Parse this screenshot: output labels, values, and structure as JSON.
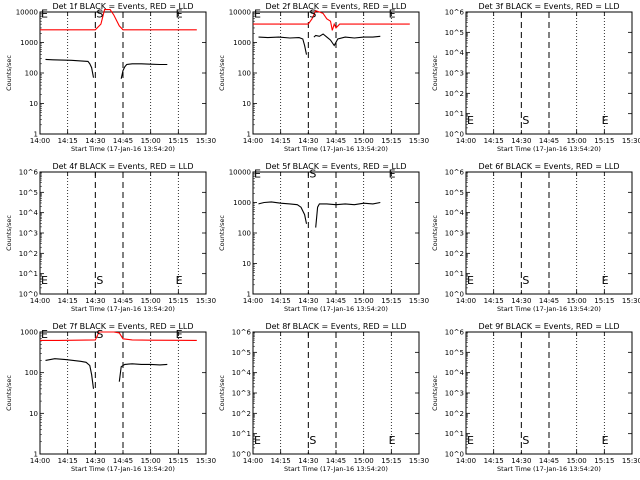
{
  "figure": {
    "ylabel": "Counts/sec",
    "xlabel_prefix": "Start Time",
    "xlabel_time": "(17-Jan-16 13:54:20)",
    "colors": {
      "events": "#000000",
      "lld": "#ff0000",
      "frame": "#000000"
    }
  },
  "chart_data": [
    {
      "id": "det1",
      "type": "line",
      "title": "Det 1f BLACK = Events, RED = LLD",
      "yscale": "log",
      "ylim": [
        1,
        10000
      ],
      "yticks": [
        "1",
        "10",
        "100",
        "1000",
        "10000"
      ],
      "xticks": [
        "14:00",
        "14:15",
        "14:30",
        "14:45",
        "15:00",
        "15:15",
        "15:30"
      ],
      "dashed_lines": [
        "14:30",
        "14:45"
      ],
      "dotted_lines": [
        "14:15",
        "15:00",
        "15:15"
      ],
      "markers": [
        {
          "text": "E",
          "time": "14:00",
          "value": 9000
        },
        {
          "text": "S",
          "time": "14:30",
          "value": 9000
        },
        {
          "text": "E",
          "time": "15:13",
          "value": 9000
        }
      ],
      "series": [
        {
          "name": "Events",
          "color": "#000000",
          "segments": [
            {
              "x": [
                "14:03",
                "14:07",
                "14:12",
                "14:17",
                "14:22",
                "14:26",
                "14:27",
                "14:28",
                "14:29"
              ],
              "y": [
                280,
                270,
                265,
                260,
                250,
                240,
                200,
                150,
                70
              ]
            },
            {
              "x": [
                "14:44",
                "14:45",
                "14:46",
                "14:47",
                "14:50",
                "14:55",
                "15:00",
                "15:05",
                "15:09"
              ],
              "y": [
                65,
                120,
                160,
                190,
                200,
                200,
                195,
                190,
                190
              ]
            }
          ]
        },
        {
          "name": "LLD",
          "color": "#ff0000",
          "segments": [
            {
              "x": [
                "14:00",
                "14:10",
                "14:20",
                "14:30",
                "14:33",
                "14:35",
                "14:38",
                "14:40",
                "14:43",
                "14:45",
                "14:50",
                "15:00",
                "15:15",
                "15:25"
              ],
              "y": [
                2600,
                2600,
                2600,
                2600,
                4000,
                12000,
                12000,
                8000,
                3500,
                2600,
                2600,
                2600,
                2600,
                2600
              ]
            }
          ]
        }
      ]
    },
    {
      "id": "det2",
      "type": "line",
      "title": "Det 2f BLACK = Events, RED = LLD",
      "yscale": "log",
      "ylim": [
        1,
        10000
      ],
      "yticks": [
        "1",
        "10",
        "100",
        "1000",
        "10000"
      ],
      "xticks": [
        "14:00",
        "14:15",
        "14:30",
        "14:45",
        "15:00",
        "15:15",
        "15:30"
      ],
      "dashed_lines": [
        "14:30",
        "14:45"
      ],
      "dotted_lines": [
        "14:15",
        "15:00",
        "15:15"
      ],
      "markers": [
        {
          "text": "E",
          "time": "14:00",
          "value": 9000
        },
        {
          "text": "S",
          "time": "14:30",
          "value": 9000
        },
        {
          "text": "E",
          "time": "15:13",
          "value": 9000
        }
      ],
      "series": [
        {
          "name": "Events",
          "color": "#000000",
          "segments": [
            {
              "x": [
                "14:03",
                "14:08",
                "14:14",
                "14:20",
                "14:25",
                "14:27",
                "14:28",
                "14:29"
              ],
              "y": [
                1500,
                1450,
                1500,
                1400,
                1450,
                1300,
                800,
                400
              ]
            },
            {
              "x": [
                "14:33",
                "14:34",
                "14:36",
                "14:38",
                "14:40",
                "14:42",
                "14:44",
                "14:46",
                "14:50",
                "14:55",
                "15:00",
                "15:05",
                "15:09"
              ],
              "y": [
                1500,
                1700,
                1600,
                1900,
                1500,
                1200,
                800,
                1300,
                1500,
                1400,
                1500,
                1500,
                1600
              ]
            }
          ]
        },
        {
          "name": "LLD",
          "color": "#ff0000",
          "segments": [
            {
              "x": [
                "14:00",
                "14:10",
                "14:20",
                "14:30",
                "14:32",
                "14:34",
                "14:36",
                "14:38",
                "14:40",
                "14:42",
                "14:43",
                "14:44",
                "14:45",
                "14:47",
                "14:50",
                "15:00",
                "15:15",
                "15:25"
              ],
              "y": [
                4000,
                4000,
                4000,
                4000,
                6000,
                11000,
                10000,
                9000,
                6000,
                5000,
                2500,
                4000,
                3000,
                4000,
                4000,
                4000,
                4000,
                4000
              ]
            }
          ]
        }
      ]
    },
    {
      "id": "det3",
      "type": "line",
      "title": "Det 3f BLACK = Events, RED = LLD",
      "yscale": "log",
      "ylim": [
        1,
        1000000
      ],
      "yticks": [
        "10^0",
        "10^1",
        "10^2",
        "10^3",
        "10^4",
        "10^5",
        "10^6"
      ],
      "xticks": [
        "14:00",
        "14:15",
        "14:30",
        "14:45",
        "15:00",
        "15:15",
        "15:30"
      ],
      "dashed_lines": [
        "14:30",
        "14:45"
      ],
      "dotted_lines": [
        "14:15",
        "15:00",
        "15:15"
      ],
      "markers": [
        {
          "text": "E",
          "time": "14:00",
          "value": 5
        },
        {
          "text": "S",
          "time": "14:30",
          "value": 5
        },
        {
          "text": "E",
          "time": "15:13",
          "value": 5
        }
      ],
      "series": []
    },
    {
      "id": "det4",
      "type": "line",
      "title": "Det 4f BLACK = Events, RED = LLD",
      "yscale": "log",
      "ylim": [
        1,
        1000000
      ],
      "yticks": [
        "10^0",
        "10^1",
        "10^2",
        "10^3",
        "10^4",
        "10^5",
        "10^6"
      ],
      "xticks": [
        "14:00",
        "14:15",
        "14:30",
        "14:45",
        "15:00",
        "15:15",
        "15:30"
      ],
      "dashed_lines": [
        "14:30",
        "14:45"
      ],
      "dotted_lines": [
        "14:15",
        "15:00",
        "15:15"
      ],
      "markers": [
        {
          "text": "E",
          "time": "14:00",
          "value": 5
        },
        {
          "text": "S",
          "time": "14:30",
          "value": 5
        },
        {
          "text": "E",
          "time": "15:13",
          "value": 5
        }
      ],
      "series": []
    },
    {
      "id": "det5",
      "type": "line",
      "title": "Det 5f BLACK = Events, RED = LLD",
      "yscale": "log",
      "ylim": [
        1,
        10000
      ],
      "yticks": [
        "1",
        "10",
        "100",
        "1000",
        "10000"
      ],
      "xticks": [
        "14:00",
        "14:15",
        "14:30",
        "14:45",
        "15:00",
        "15:15",
        "15:30"
      ],
      "dashed_lines": [
        "14:30",
        "14:45"
      ],
      "dotted_lines": [
        "14:15",
        "15:00",
        "15:15"
      ],
      "markers": [
        {
          "text": "E",
          "time": "14:00",
          "value": 9000
        },
        {
          "text": "S",
          "time": "14:30",
          "value": 9000
        },
        {
          "text": "E",
          "time": "15:13",
          "value": 9000
        }
      ],
      "series": [
        {
          "name": "Events",
          "color": "#000000",
          "segments": [
            {
              "x": [
                "14:03",
                "14:06",
                "14:10",
                "14:15",
                "14:20",
                "14:24",
                "14:26",
                "14:28",
                "14:29"
              ],
              "y": [
                900,
                1000,
                1050,
                950,
                900,
                850,
                700,
                400,
                200
              ]
            },
            {
              "x": [
                "14:34",
                "14:35",
                "14:36",
                "14:40",
                "14:45",
                "14:50",
                "14:55",
                "15:00",
                "15:05",
                "15:09"
              ],
              "y": [
                150,
                700,
                900,
                900,
                850,
                900,
                850,
                950,
                900,
                1000
              ]
            }
          ]
        }
      ]
    },
    {
      "id": "det6",
      "type": "line",
      "title": "Det 6f BLACK = Events, RED = LLD",
      "yscale": "log",
      "ylim": [
        1,
        1000000
      ],
      "yticks": [
        "10^0",
        "10^1",
        "10^2",
        "10^3",
        "10^4",
        "10^5",
        "10^6"
      ],
      "xticks": [
        "14:00",
        "14:15",
        "14:30",
        "14:45",
        "15:00",
        "15:15",
        "15:30"
      ],
      "dashed_lines": [
        "14:30",
        "14:45"
      ],
      "dotted_lines": [
        "14:15",
        "15:00",
        "15:15"
      ],
      "markers": [
        {
          "text": "E",
          "time": "14:00",
          "value": 5
        },
        {
          "text": "S",
          "time": "14:30",
          "value": 5
        },
        {
          "text": "E",
          "time": "15:13",
          "value": 5
        }
      ],
      "series": []
    },
    {
      "id": "det7",
      "type": "line",
      "title": "Det 7f BLACK = Events, RED = LLD",
      "yscale": "log",
      "ylim": [
        1,
        1000
      ],
      "yticks": [
        "1",
        "10",
        "100",
        "1000"
      ],
      "xticks": [
        "14:00",
        "14:15",
        "14:30",
        "14:45",
        "15:00",
        "15:15",
        "15:30"
      ],
      "dashed_lines": [
        "14:30",
        "14:45"
      ],
      "dotted_lines": [
        "14:15",
        "15:00",
        "15:15"
      ],
      "markers": [
        {
          "text": "E",
          "time": "14:00",
          "value": 900
        },
        {
          "text": "S",
          "time": "14:30",
          "value": 900
        },
        {
          "text": "E",
          "time": "15:13",
          "value": 900
        }
      ],
      "series": [
        {
          "name": "Events",
          "color": "#000000",
          "segments": [
            {
              "x": [
                "14:03",
                "14:08",
                "14:14",
                "14:18",
                "14:22",
                "14:25",
                "14:27",
                "14:28",
                "14:29"
              ],
              "y": [
                200,
                220,
                210,
                200,
                190,
                180,
                150,
                90,
                40
              ]
            },
            {
              "x": [
                "14:43",
                "14:44",
                "14:46",
                "14:50",
                "14:55",
                "15:00",
                "15:05",
                "15:09"
              ],
              "y": [
                60,
                140,
                160,
                165,
                160,
                160,
                155,
                160
              ]
            }
          ]
        },
        {
          "name": "LLD",
          "color": "#ff0000",
          "segments": [
            {
              "x": [
                "14:00",
                "14:10",
                "14:20",
                "14:30",
                "14:32",
                "14:35",
                "14:40",
                "14:43",
                "14:45",
                "14:50",
                "15:00",
                "15:15",
                "15:25"
              ],
              "y": [
                620,
                620,
                630,
                640,
                1000,
                1000,
                1000,
                950,
                680,
                640,
                630,
                625,
                620
              ]
            }
          ]
        }
      ]
    },
    {
      "id": "det8",
      "type": "line",
      "title": "Det 8f BLACK = Events, RED = LLD",
      "yscale": "log",
      "ylim": [
        1,
        1000000
      ],
      "yticks": [
        "10^0",
        "10^1",
        "10^2",
        "10^3",
        "10^4",
        "10^5",
        "10^6"
      ],
      "xticks": [
        "14:00",
        "14:15",
        "14:30",
        "14:45",
        "15:00",
        "15:15",
        "15:30"
      ],
      "dashed_lines": [
        "14:30",
        "14:45"
      ],
      "dotted_lines": [
        "14:15",
        "15:00",
        "15:15"
      ],
      "markers": [
        {
          "text": "E",
          "time": "14:00",
          "value": 5
        },
        {
          "text": "S",
          "time": "14:30",
          "value": 5
        },
        {
          "text": "E",
          "time": "15:13",
          "value": 5
        }
      ],
      "series": []
    },
    {
      "id": "det9",
      "type": "line",
      "title": "Det 9f BLACK = Events, RED = LLD",
      "yscale": "log",
      "ylim": [
        1,
        1000000
      ],
      "yticks": [
        "10^0",
        "10^1",
        "10^2",
        "10^3",
        "10^4",
        "10^5",
        "10^6"
      ],
      "xticks": [
        "14:00",
        "14:15",
        "14:30",
        "14:45",
        "15:00",
        "15:15",
        "15:30"
      ],
      "dashed_lines": [
        "14:30",
        "14:45"
      ],
      "dotted_lines": [
        "14:15",
        "15:00",
        "15:15"
      ],
      "markers": [
        {
          "text": "E",
          "time": "14:00",
          "value": 5
        },
        {
          "text": "S",
          "time": "14:30",
          "value": 5
        },
        {
          "text": "E",
          "time": "15:13",
          "value": 5
        }
      ],
      "series": []
    }
  ]
}
